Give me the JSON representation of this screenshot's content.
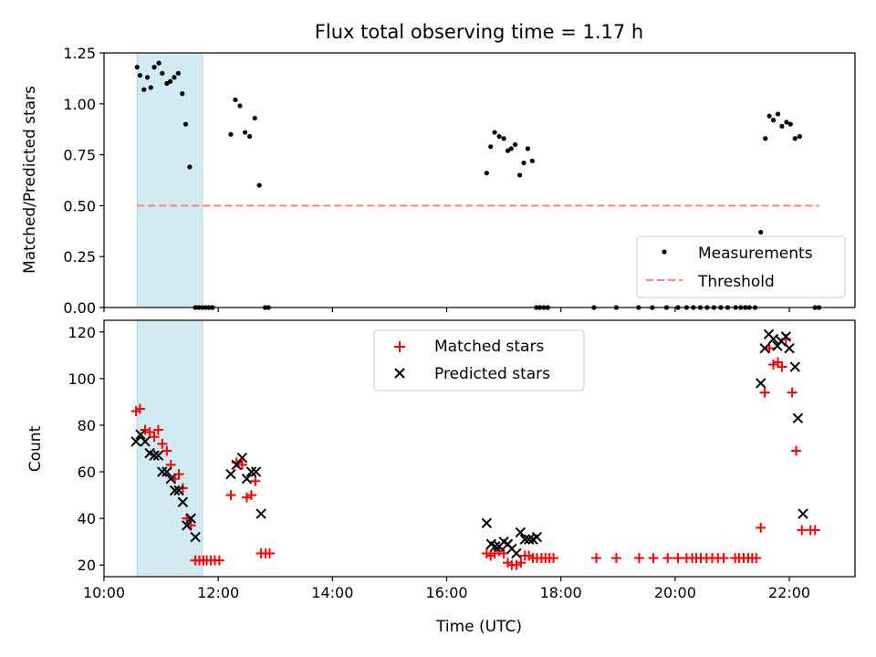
{
  "title": "Flux total observing time = 1.17 h",
  "colors": {
    "shade": "#add8e6",
    "measurements": "#000000",
    "threshold": "#ff7f7f",
    "matched": "#ff0000",
    "predicted": "#000000"
  },
  "chart_data": [
    {
      "type": "scatter",
      "ylabel": "Matched/Predicted stars",
      "xlabel": "",
      "xlim": [
        10.0,
        23.15
      ],
      "ylim": [
        0,
        1.25
      ],
      "yticks": [
        0,
        0.25,
        0.5,
        0.75,
        1.0,
        1.25
      ],
      "ytick_labels": [
        "0.00",
        "0.25",
        "0.50",
        "0.75",
        "1.00",
        "1.25"
      ],
      "shaded_interval": [
        10.58,
        11.72
      ],
      "grid": false,
      "legend_position": "lower-right",
      "series": [
        {
          "name": "Measurements",
          "marker": "dot",
          "points": [
            [
              10.58,
              1.18
            ],
            [
              10.63,
              1.14
            ],
            [
              10.7,
              1.07
            ],
            [
              10.76,
              1.13
            ],
            [
              10.82,
              1.08
            ],
            [
              10.88,
              1.18
            ],
            [
              10.96,
              1.2
            ],
            [
              11.02,
              1.15
            ],
            [
              11.1,
              1.1
            ],
            [
              11.16,
              1.11
            ],
            [
              11.23,
              1.13
            ],
            [
              11.3,
              1.15
            ],
            [
              11.37,
              1.05
            ],
            [
              11.43,
              0.9
            ],
            [
              11.5,
              0.69
            ],
            [
              11.6,
              0.0
            ],
            [
              11.66,
              0.0
            ],
            [
              11.72,
              0.0
            ],
            [
              11.78,
              0.0
            ],
            [
              11.84,
              0.0
            ],
            [
              11.9,
              0.0
            ],
            [
              12.22,
              0.85
            ],
            [
              12.3,
              1.02
            ],
            [
              12.38,
              0.99
            ],
            [
              12.47,
              0.86
            ],
            [
              12.55,
              0.84
            ],
            [
              12.64,
              0.93
            ],
            [
              12.72,
              0.6
            ],
            [
              12.82,
              0.0
            ],
            [
              12.88,
              0.0
            ],
            [
              16.7,
              0.66
            ],
            [
              16.77,
              0.79
            ],
            [
              16.84,
              0.86
            ],
            [
              16.92,
              0.84
            ],
            [
              17.0,
              0.83
            ],
            [
              17.07,
              0.77
            ],
            [
              17.13,
              0.78
            ],
            [
              17.2,
              0.8
            ],
            [
              17.28,
              0.65
            ],
            [
              17.35,
              0.71
            ],
            [
              17.42,
              0.78
            ],
            [
              17.5,
              0.72
            ],
            [
              17.57,
              0.0
            ],
            [
              17.63,
              0.0
            ],
            [
              17.7,
              0.0
            ],
            [
              17.77,
              0.0
            ],
            [
              18.58,
              0.0
            ],
            [
              18.97,
              0.0
            ],
            [
              19.36,
              0.0
            ],
            [
              19.6,
              0.0
            ],
            [
              19.85,
              0.0
            ],
            [
              20.05,
              0.0
            ],
            [
              20.2,
              0.0
            ],
            [
              20.32,
              0.0
            ],
            [
              20.44,
              0.0
            ],
            [
              20.56,
              0.0
            ],
            [
              20.68,
              0.0
            ],
            [
              20.8,
              0.0
            ],
            [
              20.92,
              0.0
            ],
            [
              21.06,
              0.0
            ],
            [
              21.15,
              0.0
            ],
            [
              21.23,
              0.0
            ],
            [
              21.3,
              0.0
            ],
            [
              21.4,
              0.0
            ],
            [
              21.5,
              0.37
            ],
            [
              21.58,
              0.83
            ],
            [
              21.65,
              0.94
            ],
            [
              21.72,
              0.92
            ],
            [
              21.8,
              0.95
            ],
            [
              21.87,
              0.89
            ],
            [
              21.95,
              0.91
            ],
            [
              22.02,
              0.9
            ],
            [
              22.1,
              0.83
            ],
            [
              22.18,
              0.84
            ],
            [
              22.45,
              0.0
            ],
            [
              22.52,
              0.0
            ]
          ]
        },
        {
          "name": "Threshold",
          "style": "dashed",
          "points": [
            [
              10.58,
              0.5
            ],
            [
              22.52,
              0.5
            ]
          ]
        }
      ]
    },
    {
      "type": "scatter",
      "ylabel": "Count",
      "xlabel": "Time (UTC)",
      "xlim": [
        10.0,
        23.15
      ],
      "ylim": [
        15,
        125
      ],
      "yticks": [
        20,
        40,
        60,
        80,
        100,
        120
      ],
      "ytick_labels": [
        "20",
        "40",
        "60",
        "80",
        "100",
        "120"
      ],
      "xticks": [
        10,
        12,
        14,
        16,
        18,
        20,
        22
      ],
      "xtick_labels": [
        "10:00",
        "12:00",
        "14:00",
        "16:00",
        "18:00",
        "20:00",
        "22:00"
      ],
      "shaded_interval": [
        10.58,
        11.72
      ],
      "grid": false,
      "legend_position": "top-center",
      "series": [
        {
          "name": "Matched stars",
          "marker": "plus",
          "points": [
            [
              10.56,
              86
            ],
            [
              10.63,
              87
            ],
            [
              10.72,
              78
            ],
            [
              10.8,
              77
            ],
            [
              10.88,
              75
            ],
            [
              10.95,
              78
            ],
            [
              11.02,
              72
            ],
            [
              11.1,
              69
            ],
            [
              11.17,
              63
            ],
            [
              11.24,
              57
            ],
            [
              11.31,
              59
            ],
            [
              11.38,
              53
            ],
            [
              11.45,
              40
            ],
            [
              11.52,
              37
            ],
            [
              11.6,
              22
            ],
            [
              11.67,
              22
            ],
            [
              11.74,
              22
            ],
            [
              11.8,
              22
            ],
            [
              11.87,
              22
            ],
            [
              11.94,
              22
            ],
            [
              12.02,
              22
            ],
            [
              12.22,
              50
            ],
            [
              12.32,
              64
            ],
            [
              12.42,
              63
            ],
            [
              12.5,
              49
            ],
            [
              12.58,
              50
            ],
            [
              12.65,
              56
            ],
            [
              12.75,
              25
            ],
            [
              12.83,
              25
            ],
            [
              12.9,
              25
            ],
            [
              16.7,
              25
            ],
            [
              16.77,
              24
            ],
            [
              16.84,
              25
            ],
            [
              16.92,
              26
            ],
            [
              17.0,
              25
            ],
            [
              17.07,
              21
            ],
            [
              17.14,
              20
            ],
            [
              17.22,
              20
            ],
            [
              17.3,
              21
            ],
            [
              17.37,
              24
            ],
            [
              17.44,
              24
            ],
            [
              17.51,
              23
            ],
            [
              17.58,
              23
            ],
            [
              17.66,
              23
            ],
            [
              17.73,
              23
            ],
            [
              17.8,
              23
            ],
            [
              17.87,
              23
            ],
            [
              18.62,
              23
            ],
            [
              18.97,
              23
            ],
            [
              19.37,
              23
            ],
            [
              19.62,
              23
            ],
            [
              19.87,
              23
            ],
            [
              20.05,
              23
            ],
            [
              20.2,
              23
            ],
            [
              20.3,
              23
            ],
            [
              20.37,
              23
            ],
            [
              20.45,
              23
            ],
            [
              20.55,
              23
            ],
            [
              20.65,
              23
            ],
            [
              20.75,
              23
            ],
            [
              20.85,
              23
            ],
            [
              21.05,
              23
            ],
            [
              21.12,
              23
            ],
            [
              21.2,
              23
            ],
            [
              21.28,
              23
            ],
            [
              21.35,
              23
            ],
            [
              21.42,
              23
            ],
            [
              21.5,
              36
            ],
            [
              21.57,
              94
            ],
            [
              21.65,
              113
            ],
            [
              21.72,
              106
            ],
            [
              21.8,
              107
            ],
            [
              21.87,
              105
            ],
            [
              21.94,
              117
            ],
            [
              22.05,
              94
            ],
            [
              22.12,
              69
            ],
            [
              22.22,
              35
            ],
            [
              22.37,
              35
            ],
            [
              22.45,
              35
            ]
          ]
        },
        {
          "name": "Predicted stars",
          "marker": "x",
          "points": [
            [
              10.56,
              73
            ],
            [
              10.64,
              76
            ],
            [
              10.72,
              73
            ],
            [
              10.8,
              68
            ],
            [
              10.88,
              67
            ],
            [
              10.95,
              67
            ],
            [
              11.02,
              60
            ],
            [
              11.1,
              60
            ],
            [
              11.17,
              57
            ],
            [
              11.24,
              52
            ],
            [
              11.31,
              52
            ],
            [
              11.38,
              47
            ],
            [
              11.45,
              37
            ],
            [
              11.52,
              40
            ],
            [
              11.6,
              32
            ],
            [
              12.22,
              59
            ],
            [
              12.32,
              63
            ],
            [
              12.42,
              66
            ],
            [
              12.5,
              57
            ],
            [
              12.58,
              60
            ],
            [
              12.66,
              60
            ],
            [
              12.75,
              42
            ],
            [
              16.7,
              38
            ],
            [
              16.78,
              29
            ],
            [
              16.85,
              28
            ],
            [
              16.92,
              28
            ],
            [
              17.0,
              30
            ],
            [
              17.07,
              29
            ],
            [
              17.14,
              27
            ],
            [
              17.22,
              25
            ],
            [
              17.29,
              34
            ],
            [
              17.37,
              31
            ],
            [
              17.44,
              31
            ],
            [
              17.51,
              31
            ],
            [
              17.58,
              32
            ],
            [
              21.5,
              98
            ],
            [
              21.57,
              113
            ],
            [
              21.64,
              119
            ],
            [
              21.72,
              117
            ],
            [
              21.79,
              114
            ],
            [
              21.86,
              116
            ],
            [
              21.94,
              118
            ],
            [
              22.0,
              113
            ],
            [
              22.1,
              105
            ],
            [
              22.15,
              83
            ],
            [
              22.24,
              42
            ]
          ]
        }
      ]
    }
  ]
}
